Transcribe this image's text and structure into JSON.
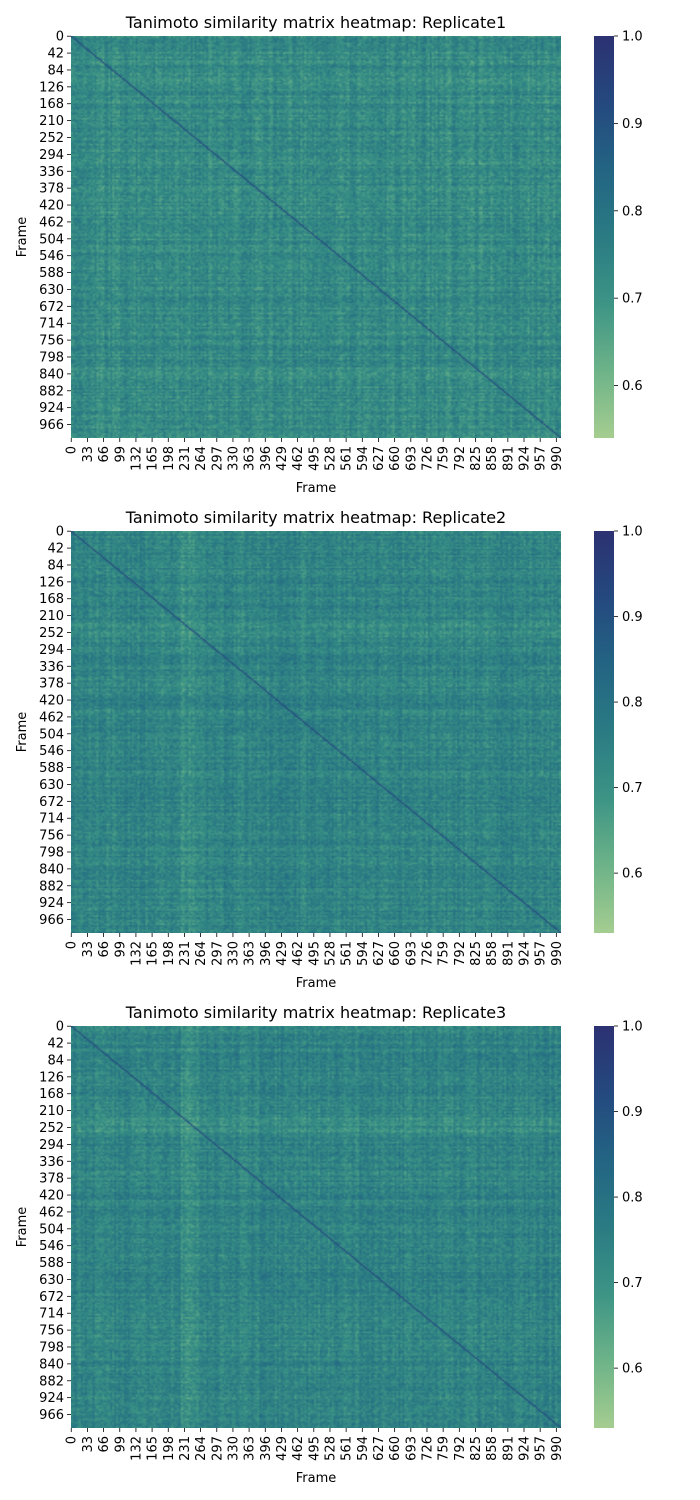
{
  "chart_data": [
    {
      "type": "heatmap",
      "title": "Tanimoto similarity matrix heatmap: Replicate1",
      "xlabel": "Frame",
      "ylabel": "Frame",
      "n_frames": 1000,
      "x_ticks": [
        "0",
        "33",
        "66",
        "99",
        "132",
        "165",
        "198",
        "231",
        "264",
        "297",
        "330",
        "363",
        "396",
        "429",
        "462",
        "495",
        "528",
        "561",
        "594",
        "627",
        "660",
        "693",
        "726",
        "759",
        "792",
        "825",
        "858",
        "891",
        "924",
        "957",
        "990"
      ],
      "y_ticks": [
        "0",
        "42",
        "84",
        "126",
        "168",
        "210",
        "252",
        "294",
        "336",
        "378",
        "420",
        "462",
        "504",
        "546",
        "588",
        "630",
        "672",
        "714",
        "756",
        "798",
        "840",
        "882",
        "924",
        "966"
      ],
      "colorbar": {
        "range": [
          0.54,
          1.0
        ],
        "ticks": [
          "0.6",
          "0.7",
          "0.8",
          "0.9",
          "1.0"
        ]
      },
      "diagonal_value": 1.0,
      "typical_range": [
        0.6,
        0.85
      ]
    },
    {
      "type": "heatmap",
      "title": "Tanimoto similarity matrix heatmap: Replicate2",
      "xlabel": "Frame",
      "ylabel": "Frame",
      "n_frames": 1000,
      "x_ticks": [
        "0",
        "33",
        "66",
        "99",
        "132",
        "165",
        "198",
        "231",
        "264",
        "297",
        "330",
        "363",
        "396",
        "429",
        "462",
        "495",
        "528",
        "561",
        "594",
        "627",
        "660",
        "693",
        "726",
        "759",
        "792",
        "825",
        "858",
        "891",
        "924",
        "957",
        "990"
      ],
      "y_ticks": [
        "0",
        "42",
        "84",
        "126",
        "168",
        "210",
        "252",
        "294",
        "336",
        "378",
        "420",
        "462",
        "504",
        "546",
        "588",
        "630",
        "672",
        "714",
        "756",
        "798",
        "840",
        "882",
        "924",
        "966"
      ],
      "colorbar": {
        "range": [
          0.53,
          1.0
        ],
        "ticks": [
          "0.6",
          "0.7",
          "0.8",
          "0.9",
          "1.0"
        ]
      },
      "diagonal_value": 1.0,
      "typical_range": [
        0.62,
        0.86
      ]
    },
    {
      "type": "heatmap",
      "title": "Tanimoto similarity matrix heatmap: Replicate3",
      "xlabel": "Frame",
      "ylabel": "Frame",
      "n_frames": 1000,
      "x_ticks": [
        "0",
        "33",
        "66",
        "99",
        "132",
        "165",
        "198",
        "231",
        "264",
        "297",
        "330",
        "363",
        "396",
        "429",
        "462",
        "495",
        "528",
        "561",
        "594",
        "627",
        "660",
        "693",
        "726",
        "759",
        "792",
        "825",
        "858",
        "891",
        "924",
        "957",
        "990"
      ],
      "y_ticks": [
        "0",
        "42",
        "84",
        "126",
        "168",
        "210",
        "252",
        "294",
        "336",
        "378",
        "420",
        "462",
        "504",
        "546",
        "588",
        "630",
        "672",
        "714",
        "756",
        "798",
        "840",
        "882",
        "924",
        "966"
      ],
      "colorbar": {
        "range": [
          0.53,
          1.0
        ],
        "ticks": [
          "0.6",
          "0.7",
          "0.8",
          "0.9",
          "1.0"
        ]
      },
      "diagonal_value": 1.0,
      "typical_range": [
        0.62,
        0.86
      ]
    }
  ],
  "colormap": {
    "name": "crest",
    "stops": [
      "#a5cd90",
      "#6db388",
      "#3d9485",
      "#2a7b83",
      "#236483",
      "#24497f",
      "#2c3172"
    ]
  }
}
